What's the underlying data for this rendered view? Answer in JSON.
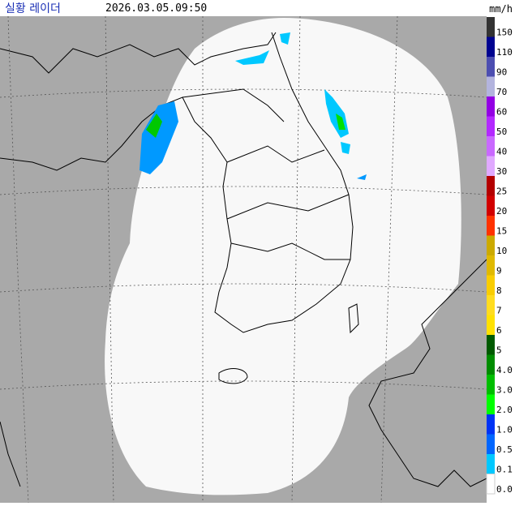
{
  "header": {
    "title": "실황 레이더",
    "time": "2026.03.05.09:50",
    "unit": "mm/h"
  },
  "legend": [
    {
      "label": "150",
      "color": "#333333"
    },
    {
      "label": "110",
      "color": "#000390"
    },
    {
      "label": "90",
      "color": "#4c4eb1"
    },
    {
      "label": "70",
      "color": "#b3b4de"
    },
    {
      "label": "60",
      "color": "#9300e4"
    },
    {
      "label": "50",
      "color": "#b329ff"
    },
    {
      "label": "40",
      "color": "#c969ff"
    },
    {
      "label": "30",
      "color": "#e0a9ff"
    },
    {
      "label": "25",
      "color": "#b40000"
    },
    {
      "label": "20",
      "color": "#d20000"
    },
    {
      "label": "15",
      "color": "#ff3200"
    },
    {
      "label": "10",
      "color": "#ccaa00"
    },
    {
      "label": "9",
      "color": "#e0b900"
    },
    {
      "label": "8",
      "color": "#f9cd00"
    },
    {
      "label": "7",
      "color": "#ffdc1f"
    },
    {
      "label": "6",
      "color": "#ffe100"
    },
    {
      "label": "5",
      "color": "#005a00"
    },
    {
      "label": "4.0",
      "color": "#008c00"
    },
    {
      "label": "3.0",
      "color": "#00be00"
    },
    {
      "label": "2.0",
      "color": "#00ff00"
    },
    {
      "label": "1.0",
      "color": "#0033f5"
    },
    {
      "label": "0.5",
      "color": "#0066ff"
    },
    {
      "label": "0.1",
      "color": "#00c8ff"
    },
    {
      "label": "0.0",
      "color": "#ffffff"
    }
  ]
}
